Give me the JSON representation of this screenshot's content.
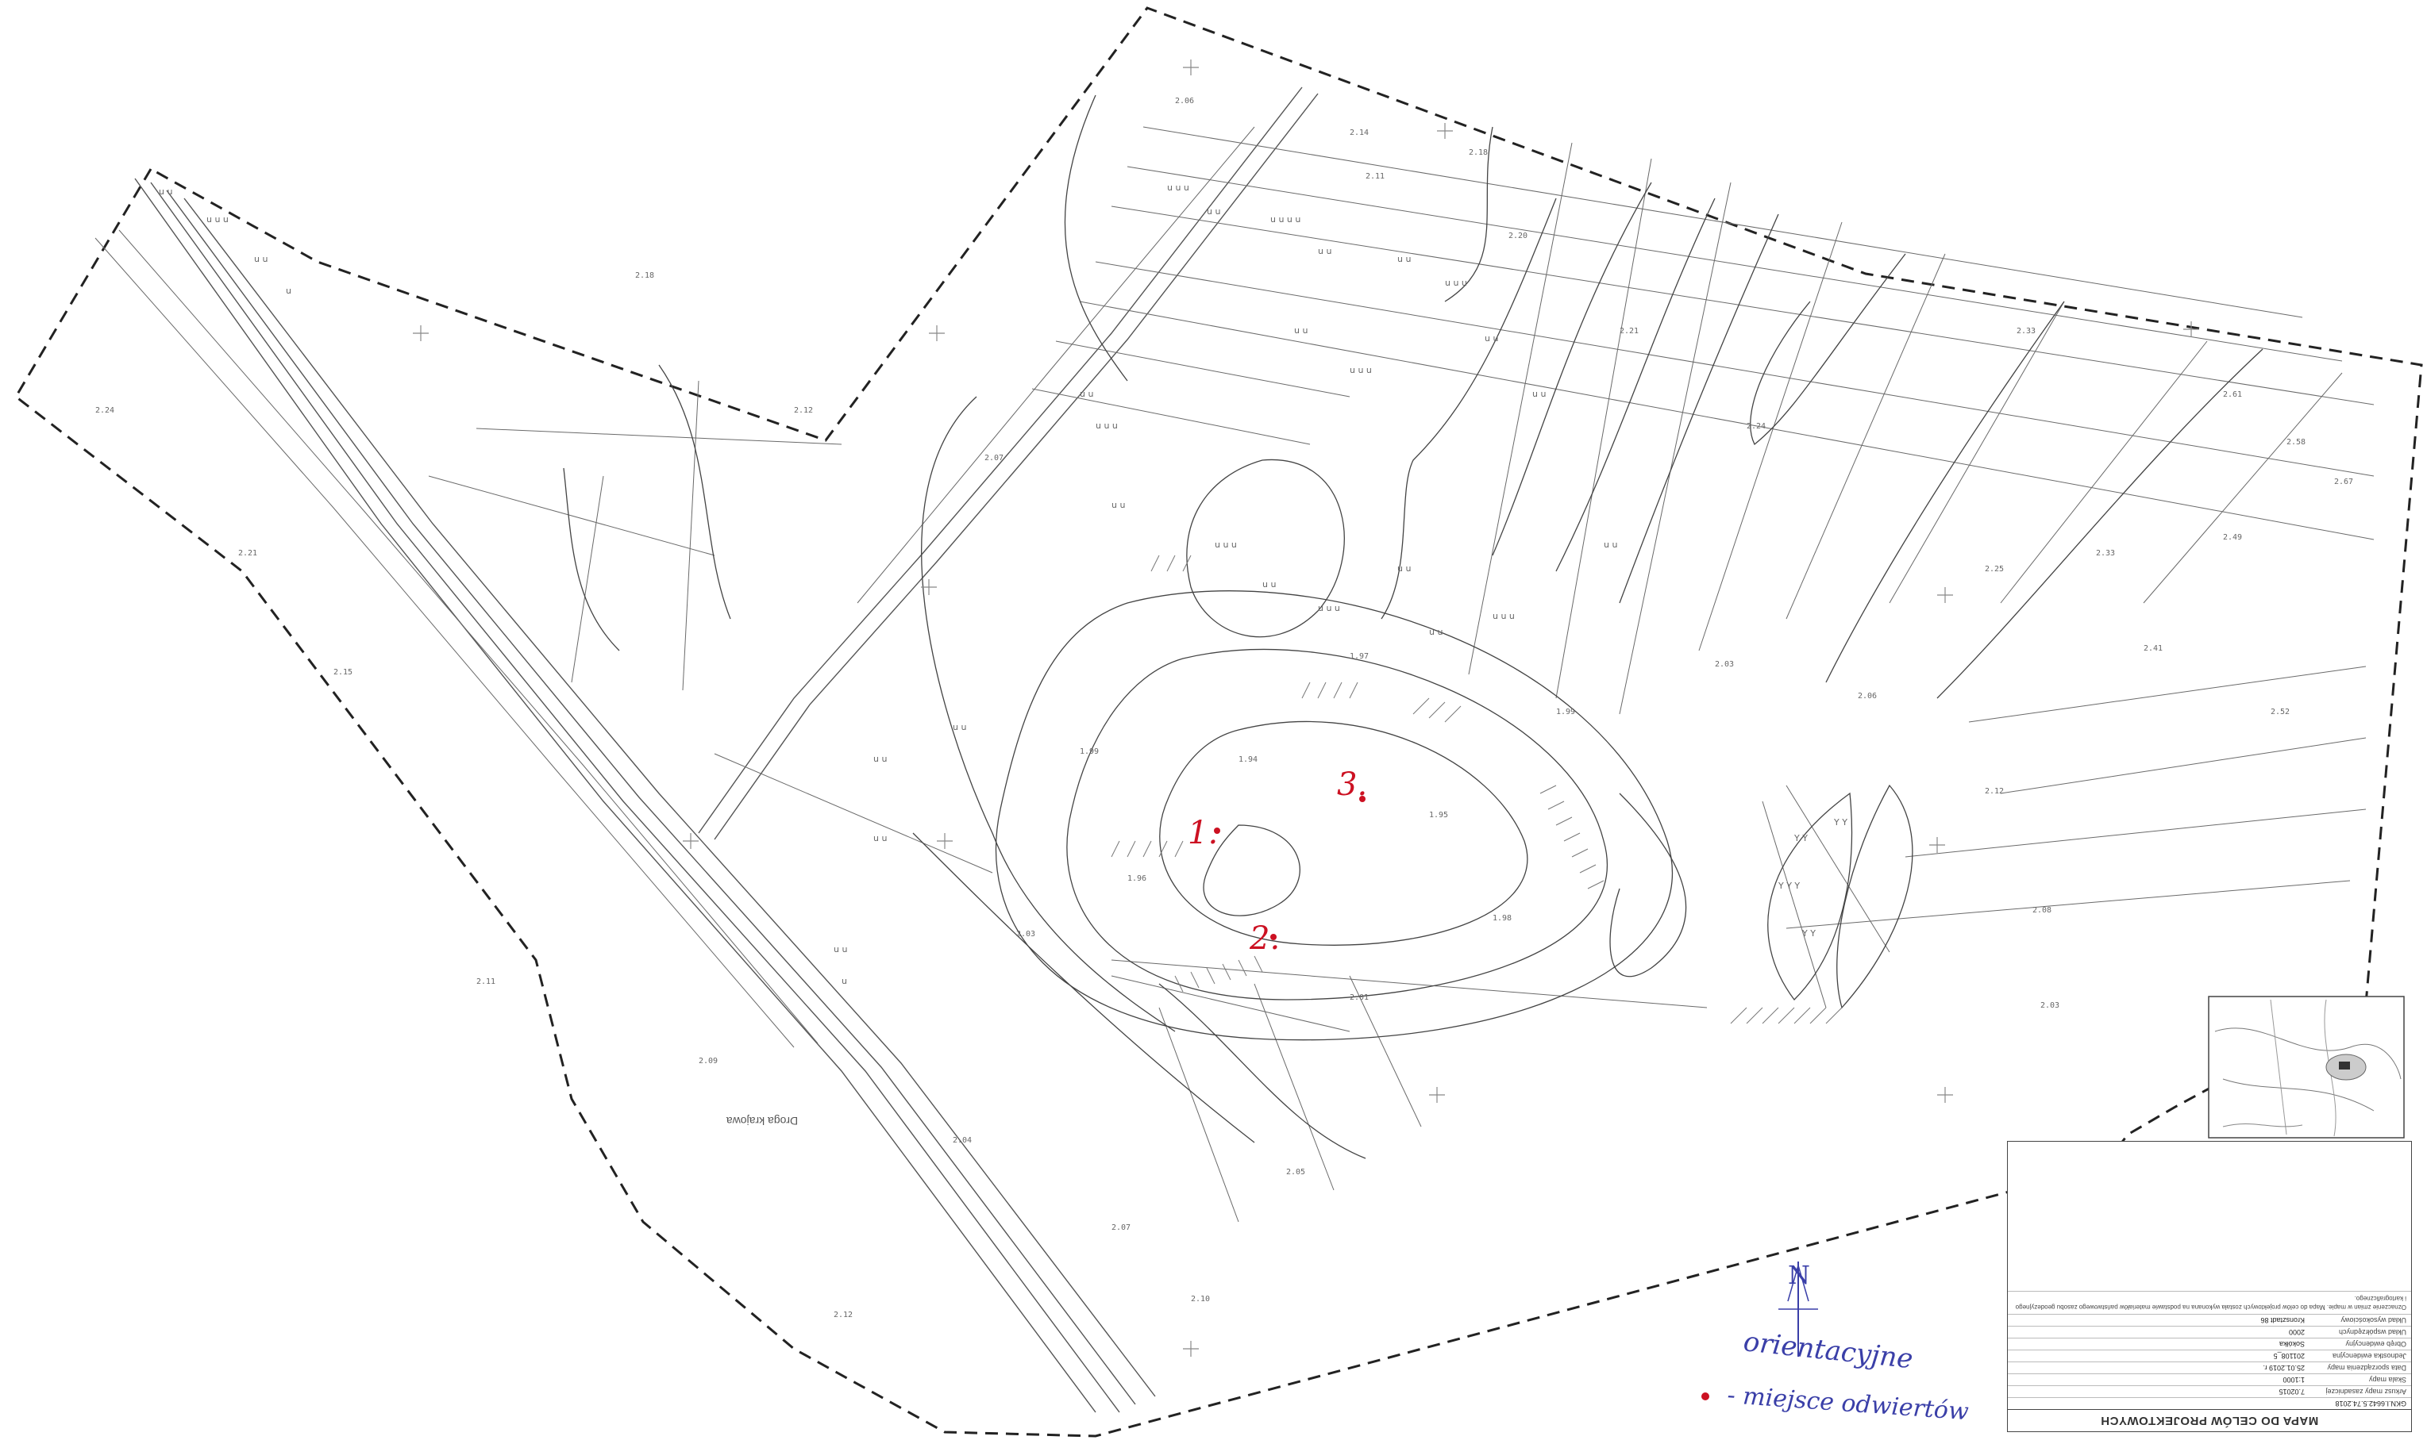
{
  "map": {
    "title": "MAPA DO CELÓW PROJEKTOWYCH",
    "document_id": "GKN.I.6642.5.74.2018",
    "colors": {
      "boundary": "#222222",
      "annotation_red": "#cc1122",
      "legend_blue": "#3a3fa8",
      "linework": "#555555"
    }
  },
  "annotations": {
    "points": [
      {
        "id": "1",
        "label": "1."
      },
      {
        "id": "2",
        "label": "2."
      },
      {
        "id": "3",
        "label": "3."
      }
    ]
  },
  "place_names": {
    "road_name": "Droga krajowa"
  },
  "legend": {
    "north_symbol": "N",
    "orientation_label": "orientacyjne",
    "dot_label": "- miejsce odwiertów"
  },
  "title_block": {
    "title": "MAPA DO CELÓW PROJEKTOWYCH",
    "doc_number": "GKN.I.6642.5.74.2018",
    "rows": [
      {
        "key": "Arkusz mapy zasadniczej",
        "value": "7.02015"
      },
      {
        "key": "Skala mapy",
        "value": "1:1000"
      },
      {
        "key": "Data sporządzenia mapy",
        "value": "25.01.2019 r."
      },
      {
        "key": "Jednostka ewidencyjna",
        "value": "201108_5"
      },
      {
        "key": "Obręb ewidencyjny",
        "value": "Sokółka"
      },
      {
        "key": "Układ współrzędnych",
        "value": "2000"
      },
      {
        "key": "Układ wysokościowy",
        "value": "Kronsztadt 86"
      }
    ],
    "notes": "Oznaczenie zmian w mapie. Mapa do celów projektowych została wykonana na podstawie materiałów państwowego zasobu geodezyjnego i kartograficznego."
  }
}
